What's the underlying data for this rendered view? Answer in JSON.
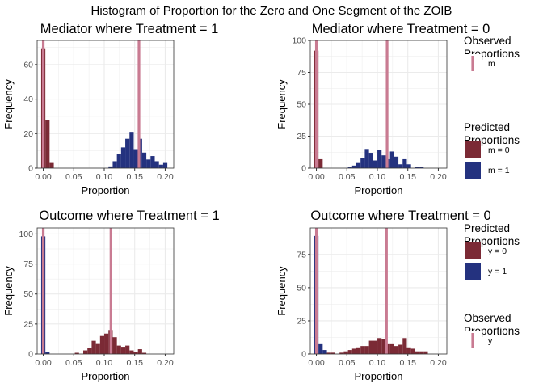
{
  "figure_title": "Histogram of Proportion for the Zero and One Segment of the ZOIB",
  "colors": {
    "zero": "#7B2A35",
    "one": "#24327F",
    "observed": "#C97B92",
    "grid": "#ebebeb",
    "panel_border": "#333333"
  },
  "legends": [
    {
      "title": "Observed\n Proportions",
      "items": [
        {
          "label": "m",
          "type": "line",
          "color_key": "observed"
        }
      ]
    },
    {
      "title": "Predicted\n Proportions",
      "items": [
        {
          "label": "m = 0",
          "type": "box",
          "color_key": "zero"
        },
        {
          "label": "m = 1",
          "type": "box",
          "color_key": "one"
        }
      ]
    },
    {
      "title": "Predicted\n Proportions",
      "items": [
        {
          "label": "y = 0",
          "type": "box",
          "color_key": "zero"
        },
        {
          "label": "y = 1",
          "type": "box",
          "color_key": "one"
        }
      ]
    },
    {
      "title": "Observed\n Proportions",
      "items": [
        {
          "label": "y",
          "type": "line",
          "color_key": "observed"
        }
      ]
    }
  ],
  "chart_data": [
    {
      "type": "bar",
      "title": "Mediator where Treatment = 1",
      "xlabel": "Proportion",
      "ylabel": "Frequency",
      "xlim": [
        -0.01,
        0.214
      ],
      "ylim": [
        0,
        74
      ],
      "xticks": [
        "0.00",
        "0.05",
        "0.10",
        "0.15",
        "0.20"
      ],
      "yticks": [
        "0",
        "20",
        "40",
        "60"
      ],
      "bin_width": 0.0069,
      "observed_lines": [
        0.0,
        0.157
      ],
      "series": [
        {
          "name": "m = 0",
          "color_key": "zero",
          "x": [
            0.0,
            0.0069,
            0.0138
          ],
          "values": [
            69,
            28,
            3
          ]
        },
        {
          "name": "m = 1",
          "color_key": "one",
          "x": [
            0.1104,
            0.1173,
            0.1242,
            0.1311,
            0.138,
            0.1449,
            0.1518,
            0.1587,
            0.1656,
            0.1725,
            0.1794,
            0.1863,
            0.1932,
            0.2001
          ],
          "values": [
            1,
            4,
            8,
            12,
            17,
            21,
            11,
            17,
            9,
            5,
            7,
            4,
            2,
            3
          ]
        }
      ]
    },
    {
      "type": "bar",
      "title": "Mediator where Treatment = 0",
      "xlabel": "Proportion",
      "ylabel": "Frequency",
      "xlim": [
        -0.01,
        0.214
      ],
      "ylim": [
        0,
        100
      ],
      "xticks": [
        "0.00",
        "0.05",
        "0.10",
        "0.15",
        "0.20"
      ],
      "yticks": [
        "0",
        "25",
        "50",
        "75",
        "100"
      ],
      "bin_width": 0.0069,
      "observed_lines": [
        0.0,
        0.116
      ],
      "series": [
        {
          "name": "m = 0",
          "color_key": "zero",
          "x": [
            0.0,
            0.0069
          ],
          "values": [
            92,
            7
          ]
        },
        {
          "name": "m = 1",
          "color_key": "one",
          "x": [
            0.0552,
            0.0621,
            0.069,
            0.0759,
            0.0828,
            0.0897,
            0.0966,
            0.1035,
            0.1104,
            0.1173,
            0.1242,
            0.1311,
            0.138,
            0.1449,
            0.1518,
            0.1656,
            0.1725
          ],
          "values": [
            1,
            2,
            4,
            8,
            15,
            12,
            6,
            14,
            10,
            7,
            13,
            9,
            3,
            7,
            3,
            1,
            1
          ]
        }
      ]
    },
    {
      "type": "bar",
      "title": "Outcome where Treatment = 1",
      "xlabel": "Proportion",
      "ylabel": "Frequency",
      "xlim": [
        -0.01,
        0.214
      ],
      "ylim": [
        0,
        105
      ],
      "xticks": [
        "0.00",
        "0.05",
        "0.10",
        "0.15",
        "0.20"
      ],
      "yticks": [
        "0",
        "25",
        "50",
        "75",
        "100"
      ],
      "bin_width": 0.0069,
      "observed_lines": [
        0.0,
        0.111
      ],
      "series": [
        {
          "name": "y = 1",
          "color_key": "one",
          "x": [
            0.0,
            0.0069
          ],
          "values": [
            98,
            2
          ]
        },
        {
          "name": "y = 0",
          "color_key": "zero",
          "x": [
            0.0552,
            0.069,
            0.0759,
            0.0828,
            0.0897,
            0.0966,
            0.1035,
            0.1104,
            0.1173,
            0.1242,
            0.1311,
            0.138,
            0.1449,
            0.1518,
            0.1587,
            0.1656
          ],
          "values": [
            1,
            3,
            5,
            11,
            9,
            15,
            17,
            20,
            14,
            7,
            6,
            7,
            3,
            2,
            4,
            1
          ]
        }
      ]
    },
    {
      "type": "bar",
      "title": "Outcome where Treatment = 0",
      "xlabel": "Proportion",
      "ylabel": "Frequency",
      "xlim": [
        -0.01,
        0.214
      ],
      "ylim": [
        0,
        95
      ],
      "xticks": [
        "0.00",
        "0.05",
        "0.10",
        "0.15",
        "0.20"
      ],
      "yticks": [
        "0",
        "25",
        "50",
        "75"
      ],
      "bin_width": 0.0069,
      "observed_lines": [
        0.0,
        0.115
      ],
      "series": [
        {
          "name": "y = 1",
          "color_key": "one",
          "x": [
            0.0,
            0.0069,
            0.0138
          ],
          "values": [
            89,
            8,
            3
          ]
        },
        {
          "name": "y = 0",
          "color_key": "zero",
          "x": [
            0.0207,
            0.0276,
            0.0414,
            0.0483,
            0.0552,
            0.0621,
            0.069,
            0.0759,
            0.0828,
            0.0897,
            0.0966,
            0.1035,
            0.1104,
            0.1173,
            0.1242,
            0.1311,
            0.138,
            0.1449,
            0.1518,
            0.1587,
            0.1656,
            0.1725,
            0.1794
          ],
          "values": [
            1,
            1,
            1,
            2,
            3,
            4,
            5,
            6,
            6,
            10,
            10,
            12,
            11,
            8,
            8,
            6,
            7,
            12,
            5,
            4,
            2,
            2,
            2
          ]
        }
      ]
    }
  ]
}
